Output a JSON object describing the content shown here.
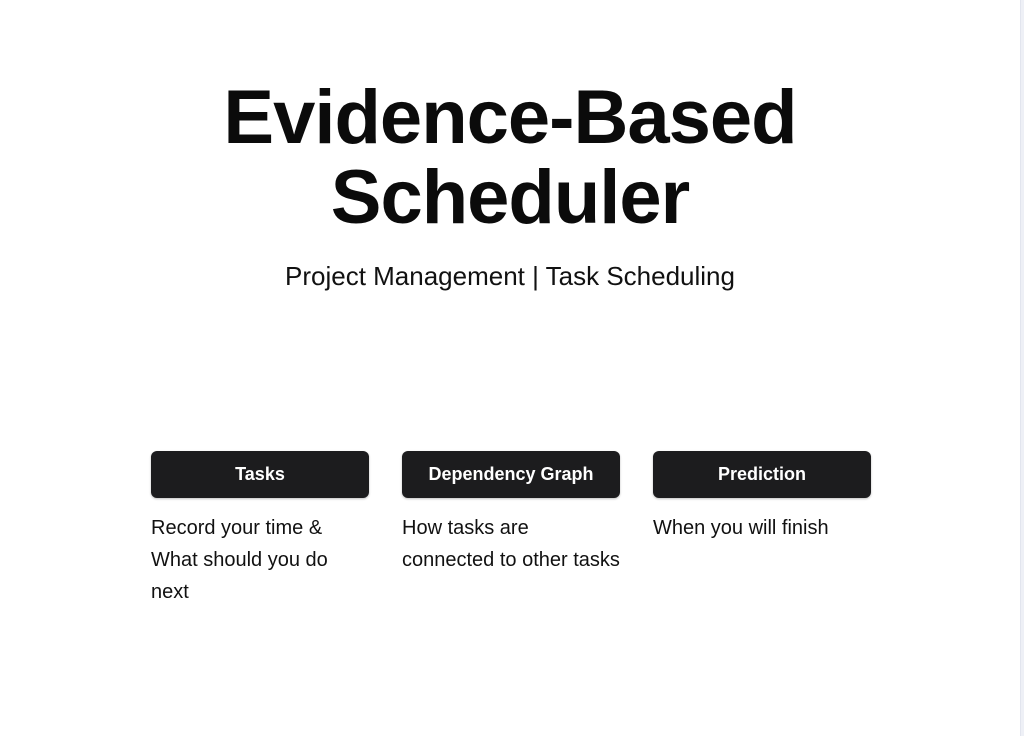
{
  "hero": {
    "title_line1": "Evidence-Based",
    "title_line2": "Scheduler",
    "subtitle": "Project Management | Task Scheduling"
  },
  "features": [
    {
      "label": "Tasks",
      "description": "Record your time & What should you do next"
    },
    {
      "label": "Dependency Graph",
      "description": "How tasks are connected to other tasks"
    },
    {
      "label": "Prediction",
      "description": "When you will finish"
    }
  ],
  "colors": {
    "background": "#ffffff",
    "button_background": "#1c1c1e",
    "button_text": "#ffffff",
    "text": "#111111"
  }
}
